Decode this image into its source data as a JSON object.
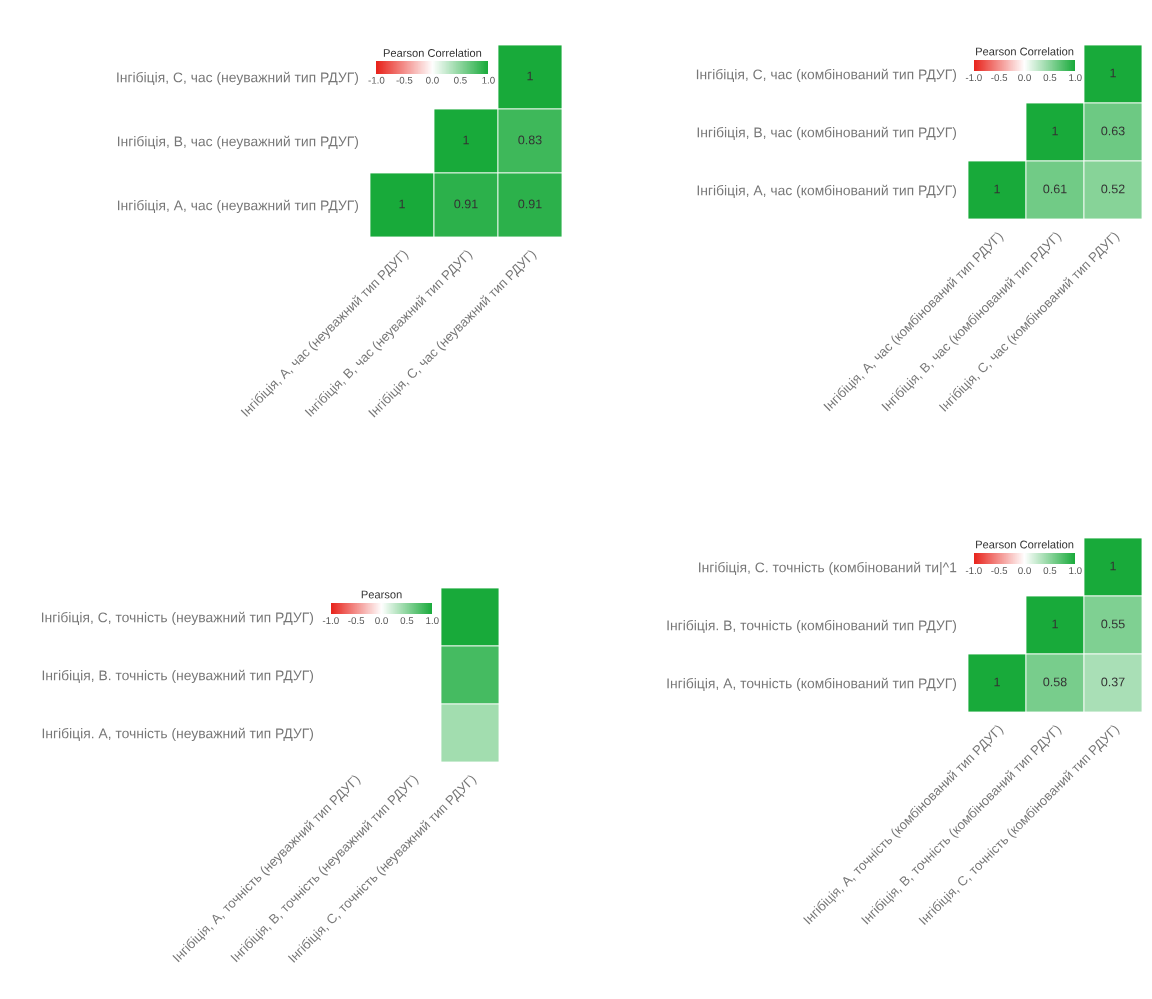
{
  "chart_data": [
    {
      "type": "heatmap",
      "clabel": "Pearson Correlation",
      "categories": [
        "Інгібіція, А, час (неуважний тип РДУГ)",
        "Інгібіція, В, час (неуважний тип РДУГ)",
        "Інгібіція, С, час (неуважний тип РДУГ)"
      ],
      "y_categories": [
        "Інгібіція, С, час (неуважний тип РДУГ)",
        "Інгібіція, В, час (неуважний тип РДУГ)",
        "Інгібіція, А, час (неуважний тип РДУГ)"
      ],
      "cells": [
        [
          null,
          null,
          1
        ],
        [
          null,
          1,
          0.83
        ],
        [
          1,
          0.91,
          0.91
        ]
      ],
      "clim": [
        -1,
        1
      ],
      "cticks": [
        {
          "value": -1,
          "label": "-1.0"
        },
        {
          "value": -0.5,
          "label": "-0.5"
        },
        {
          "value": 0,
          "label": "0.0"
        },
        {
          "value": 0.5,
          "label": "0.5"
        },
        {
          "value": 1,
          "label": "1.0"
        }
      ],
      "data_labels": true
    },
    {
      "type": "heatmap",
      "clabel": "Pearson Correlation",
      "categories": [
        "Інгібіція, А, час (комбінований тип РДУГ)",
        "Інгібіція, В, час (комбінований тип РДУГ)",
        "Інгібіція, С, час (комбінований тип РДУГ)"
      ],
      "y_categories": [
        "Інгібіція, С, час (комбінований тип РДУГ)",
        "Інгібіція, В, час (комбінований тип РДУГ)",
        "Інгібіція, А, час (комбінований тип РДУГ)"
      ],
      "cells": [
        [
          null,
          null,
          1
        ],
        [
          null,
          1,
          0.63
        ],
        [
          1,
          0.61,
          0.52
        ]
      ],
      "clim": [
        -1,
        1
      ],
      "cticks": [
        {
          "value": -1,
          "label": "-1.0"
        },
        {
          "value": -0.5,
          "label": "-0.5"
        },
        {
          "value": 0,
          "label": "0.0"
        },
        {
          "value": 0.5,
          "label": "0.5"
        },
        {
          "value": 1,
          "label": "1.0"
        }
      ],
      "data_labels": true
    },
    {
      "type": "heatmap",
      "clabel": "Pearson",
      "categories": [
        "Інгібіція, А, точність (неуважний тип РДУГ)",
        "Інгібіція, В, точність (неуважний тип РДУГ)",
        "Інгібіція, С, точність (неуважний тип РДУГ)"
      ],
      "y_categories": [
        "Інгібіція, С, точність (неуважний тип РДУГ)",
        "Інгібіція, В. точність (неуважний тип РДУГ)",
        "Інгібіція. А, точність (неуважний тип РДУГ)"
      ],
      "cells": [
        [
          null,
          null,
          1
        ],
        [
          null,
          null,
          0.8
        ],
        [
          null,
          null,
          0.4
        ]
      ],
      "clim": [
        -1,
        1
      ],
      "cticks": [
        {
          "value": -1,
          "label": "-1.0"
        },
        {
          "value": -0.5,
          "label": "-0.5"
        },
        {
          "value": 0,
          "label": "0.0"
        },
        {
          "value": 0.5,
          "label": "0.5"
        },
        {
          "value": 1,
          "label": "1.0"
        }
      ]
    },
    {
      "type": "heatmap",
      "clabel": "Pearson Correlation",
      "categories": [
        "Інгібіція, А, точність (комбінований тип РДУГ)",
        "Інгібіція, В, точність (комбінований тип РДУГ)",
        "Інгібіція, С, точність (комбінований тип РДУГ)"
      ],
      "y_categories": [
        "Інгібіція, С. точність (комбінований ти|^1",
        "Інгібіція. В, точність (комбінований тип РДУГ)",
        "Інгібіція, А, точність (комбінований тип РДУГ)"
      ],
      "cells": [
        [
          null,
          null,
          1
        ],
        [
          null,
          1,
          0.55
        ],
        [
          1,
          0.58,
          0.37
        ]
      ],
      "clim": [
        -1,
        1
      ],
      "cticks": [
        {
          "value": -1,
          "label": "-1.0"
        },
        {
          "value": -0.5,
          "label": "-0.5"
        },
        {
          "value": 0,
          "label": "0.0"
        },
        {
          "value": 0.5,
          "label": "0.5"
        },
        {
          "value": 1,
          "label": "1.0"
        }
      ],
      "data_labels": true
    }
  ]
}
